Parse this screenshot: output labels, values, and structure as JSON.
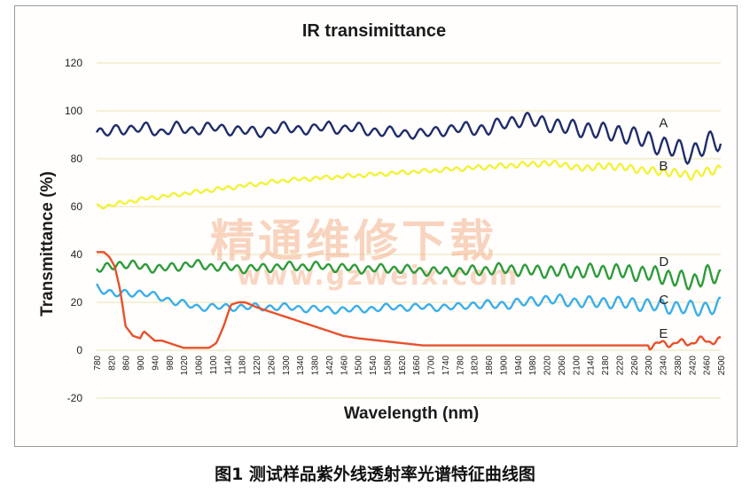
{
  "caption": "图1 测试样品紫外线透射率光谱特征曲线图",
  "watermark": {
    "text": "精通维修下载",
    "url": "www.gzweix.com"
  },
  "chart_data": {
    "type": "line",
    "title": "IR transimittance",
    "xlabel": "Wavelength (nm)",
    "ylabel": "Transmittance (%)",
    "ylim": [
      -20,
      120
    ],
    "yticks": [
      -20,
      0,
      20,
      40,
      60,
      80,
      100,
      120
    ],
    "xlim": [
      780,
      2500
    ],
    "xticks": [
      780,
      820,
      860,
      900,
      940,
      980,
      1020,
      1060,
      1100,
      1140,
      1180,
      1220,
      1260,
      1300,
      1340,
      1380,
      1420,
      1460,
      1500,
      1540,
      1580,
      1620,
      1660,
      1700,
      1740,
      1780,
      1820,
      1860,
      1900,
      1940,
      1980,
      2020,
      2060,
      2100,
      2140,
      2180,
      2220,
      2260,
      2300,
      2340,
      2380,
      2420,
      2460,
      2500
    ],
    "grid": "horizontal",
    "series": [
      {
        "name": "A",
        "color": "#1f2d6b",
        "x": [
          780,
          800,
          840,
          880,
          920,
          960,
          1000,
          1040,
          1100,
          1160,
          1220,
          1300,
          1380,
          1420,
          1460,
          1500,
          1560,
          1620,
          1680,
          1720,
          1760,
          1800,
          1860,
          1900,
          1940,
          1980,
          2020,
          2060,
          2100,
          2140,
          2180,
          2220,
          2260,
          2300,
          2340,
          2380,
          2420,
          2460,
          2500
        ],
        "y": [
          91,
          90,
          93,
          92,
          93,
          91,
          93,
          92,
          93,
          92,
          91,
          93,
          92,
          94,
          92,
          93,
          91,
          91,
          90,
          92,
          92,
          93,
          92,
          95,
          96,
          96,
          95,
          93,
          93,
          92,
          91,
          91,
          89,
          88,
          85,
          84,
          82,
          86,
          88
        ],
        "osc_amp": 1.8,
        "osc_period": 42
      },
      {
        "name": "B",
        "color": "#f2f23a",
        "x": [
          780,
          800,
          900,
          1000,
          1100,
          1200,
          1300,
          1400,
          1500,
          1600,
          1700,
          1800,
          1900,
          2000,
          2060,
          2100,
          2200,
          2300,
          2380,
          2420,
          2500
        ],
        "y": [
          60,
          60,
          63,
          65,
          67,
          69,
          71,
          72,
          73,
          74,
          75,
          76,
          77,
          78,
          78,
          76,
          77,
          75,
          74,
          73,
          76
        ],
        "osc_amp": 0.7,
        "osc_period": 30
      },
      {
        "name": "C",
        "color": "#3aaeea",
        "x": [
          780,
          800,
          830,
          860,
          900,
          960,
          1000,
          1060,
          1100,
          1140,
          1200,
          1300,
          1400,
          1500,
          1600,
          1700,
          1780,
          1800,
          1900,
          1960,
          2000,
          2060,
          2100,
          2200,
          2300,
          2360,
          2400,
          2440,
          2500
        ],
        "y": [
          27,
          25,
          23,
          24,
          24,
          22,
          20,
          18,
          18,
          18,
          18,
          18,
          17,
          17,
          18,
          18,
          18,
          19,
          19,
          20,
          21,
          21,
          20,
          20,
          19,
          18,
          18,
          17,
          19
        ],
        "osc_amp": 1.2,
        "osc_period": 40
      },
      {
        "name": "D",
        "color": "#2e9b3a",
        "x": [
          780,
          800,
          840,
          860,
          900,
          960,
          1000,
          1040,
          1100,
          1200,
          1300,
          1400,
          1500,
          1600,
          1700,
          1800,
          1900,
          2000,
          2100,
          2200,
          2300,
          2380,
          2420,
          2460,
          2500
        ],
        "y": [
          34,
          34,
          36,
          36,
          35,
          34,
          35,
          36,
          35,
          34,
          35,
          35,
          34,
          34,
          33,
          33,
          34,
          33,
          33,
          33,
          32,
          30,
          28,
          32,
          30
        ],
        "osc_amp": 1.5,
        "osc_period": 36
      },
      {
        "name": "E",
        "color": "#e8502a",
        "x": [
          780,
          800,
          815,
          830,
          845,
          860,
          880,
          900,
          910,
          925,
          940,
          960,
          980,
          1000,
          1020,
          1060,
          1090,
          1110,
          1130,
          1150,
          1170,
          1190,
          1220,
          1260,
          1300,
          1340,
          1380,
          1420,
          1460,
          1500,
          1560,
          1620,
          1680,
          1740,
          1800,
          1900,
          2000,
          2100,
          2200,
          2300,
          2360,
          2400,
          2440,
          2480,
          2500
        ],
        "y": [
          41,
          41,
          39,
          35,
          25,
          10,
          6,
          5,
          8,
          6,
          4,
          4,
          3,
          2,
          1,
          1,
          1,
          3,
          10,
          19,
          20,
          20,
          18,
          16,
          14,
          12,
          10,
          8,
          6,
          5,
          4,
          3,
          2,
          2,
          2,
          2,
          2,
          2,
          2,
          2,
          3,
          3,
          4,
          4,
          4
        ],
        "osc_amp": 0,
        "osc_period": 40
      }
    ],
    "series_label_anchors": [
      {
        "name": "A",
        "at_x": 2330,
        "at_y": 91
      },
      {
        "name": "B",
        "at_x": 2330,
        "at_y": 73
      },
      {
        "name": "C",
        "at_x": 2330,
        "at_y": 17
      },
      {
        "name": "D",
        "at_x": 2330,
        "at_y": 33
      },
      {
        "name": "E",
        "at_x": 2330,
        "at_y": 3
      }
    ]
  }
}
